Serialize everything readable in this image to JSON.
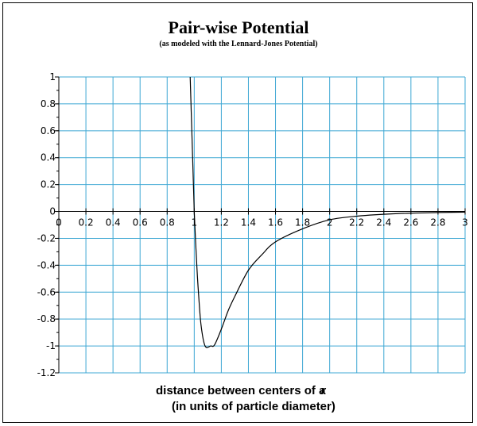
{
  "chart_data": {
    "type": "line",
    "title": "Pair-wise Potential",
    "subtitle": "(as modeled with the Lennard-Jones Potential)",
    "xlabel": "distance between centers of a",
    "xlabel_symbol": "r",
    "xlabel_line2": "(in units of particle diameter)",
    "xlim": [
      0,
      3
    ],
    "ylim": [
      -1.2,
      1
    ],
    "x_ticks": [
      "0",
      "0.2",
      "0.4",
      "0.6",
      "0.8",
      "1",
      "1.2",
      "1.4",
      "1.6",
      "1.8",
      "2",
      "2.2",
      "2.4",
      "2.6",
      "2.8",
      "3"
    ],
    "y_ticks": [
      "1",
      "0.8",
      "0.6",
      "0.4",
      "0.2",
      "0",
      "-0.2",
      "-0.4",
      "-0.6",
      "-0.8",
      "-1",
      "-1.2"
    ],
    "grid": true,
    "colors": {
      "grid": "#3fa8d4",
      "curve": "#000000"
    },
    "series": [
      {
        "x": [
          1.0,
          1.01,
          1.02,
          1.03,
          1.05,
          1.08,
          1.12246,
          1.15,
          1.2,
          1.25,
          1.3,
          1.4,
          1.5,
          1.6,
          1.8,
          2.0,
          2.2,
          2.5,
          2.8,
          3.0
        ],
        "y": [
          0.0,
          -0.227,
          -0.421,
          -0.586,
          -0.843,
          -1.0,
          -1.0,
          -0.992,
          -0.875,
          -0.739,
          -0.631,
          -0.437,
          -0.321,
          -0.226,
          -0.129,
          -0.062,
          -0.035,
          -0.016,
          -0.008,
          -0.005
        ]
      }
    ]
  }
}
